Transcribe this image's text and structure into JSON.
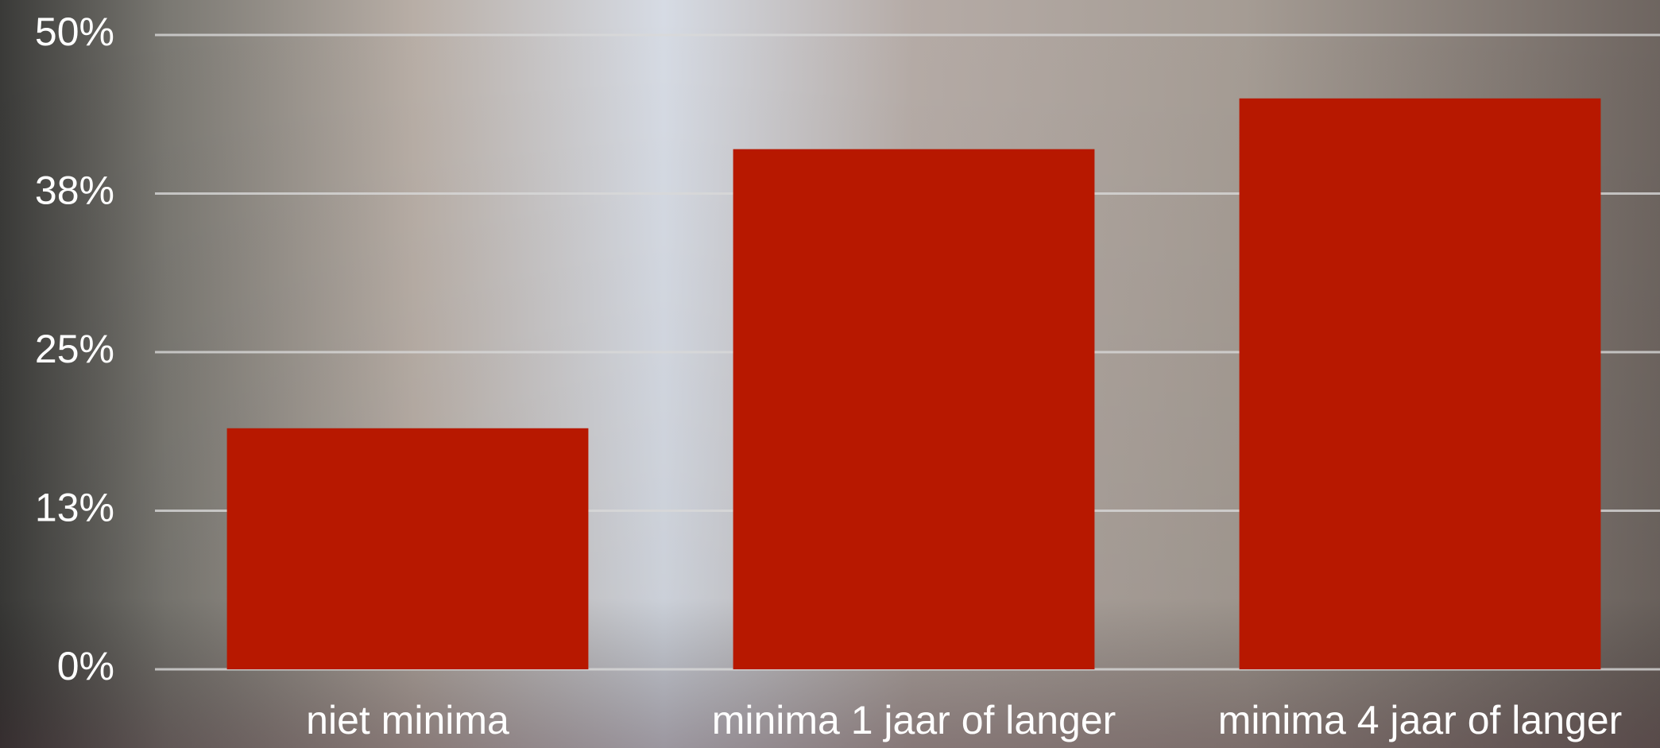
{
  "chart_data": {
    "type": "bar",
    "categories": [
      "niet minima",
      "minima 1 jaar of langer",
      "minima 4 jaar of langer"
    ],
    "values": [
      19,
      41,
      45
    ],
    "color": "#b71800",
    "ylim": [
      0,
      50
    ],
    "yticks": [
      {
        "value": 0,
        "label": "0%"
      },
      {
        "value": 12.5,
        "label": "13%"
      },
      {
        "value": 25,
        "label": "25%"
      },
      {
        "value": 37.5,
        "label": "38%"
      },
      {
        "value": 50,
        "label": "50%"
      }
    ],
    "grid": true
  }
}
